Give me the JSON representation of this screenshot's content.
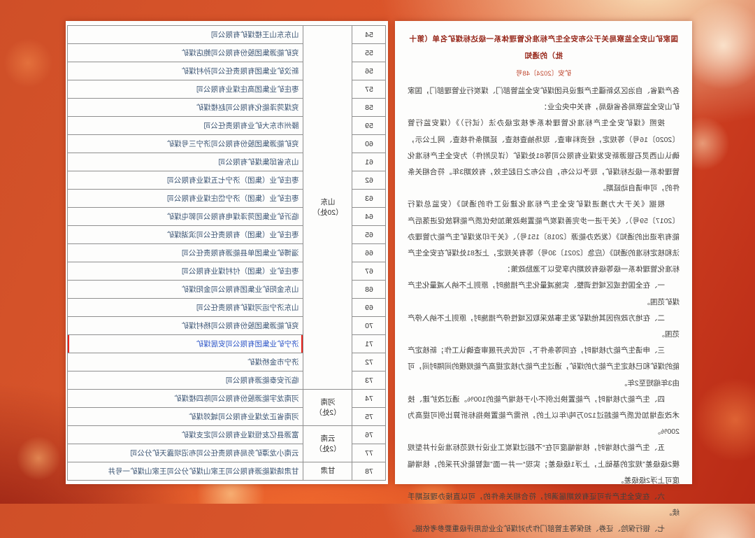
{
  "colors": {
    "accent_red": "#e8231c",
    "link_blue": "#2d55c8",
    "title_maroon": "#97281b",
    "doc_number_red": "#c04a32",
    "body_text": "#403f3d",
    "table_text": "#3c5574"
  },
  "notice": {
    "title": "国家矿山安全监察局关于公布安全生产标准化管理体系一级达标煤矿名单（第十批）的通知",
    "doc_number": "矿安〔2024〕48号",
    "paragraphs": [
      "各产煤省、自治区及新疆生产建设兵团煤矿安全监管部门、煤炭行业管理部门，国家矿山安全监察局各省级局，有关中央企业：",
      "按照《煤矿安全生产标准化管理体系考核定级办法（试行）》（煤安监行管〔2020〕16号）等规定，经资料审查、现场抽查核查、延期条件核查、网上公示，确认山西灵石银源新安发煤业有限公司等81处煤矿（详见附件）为安全生产标准化管理体系一级达标煤矿，现予以公布，自公布之日起生效，有效期3年。符合相关条件的，可申请自动延期。",
      "根据《关于大力推进煤矿安全生产标准化建设工作的通知》（安监总煤行〔2017〕59号）、《关于进一步完善煤炭产能置换政策加快优质产能释放促进落后产能有序退出的通知》（发改办能源〔2018〕151号）、《关于印发煤矿生产能力管理办法和核定标准的通知》（应急〔2021〕30号）等有关规定，上述81处煤矿在安全生产标准化管理体系一级等级有效期内享受以下激励政策：",
      "一、在全国性或区域性调整、实施减量化生产措施时，原则上不纳入减量化生产煤矿范围。",
      "二、在地方政府因其他煤矿发生事故采取区域性停产措施时，原则上不纳入停产范围。",
      "三、申请生产能力核增时，在同等条件下，可优先开展审查确认工作；新核定产能的煤矿和已核定生产能力的煤矿，通过生产能力核定提高产能规模的间隔时间，可由3年缩短至2年。",
      "四、生产能力核增时，产能置换比例不小于核增产能的100%。通过改扩建、技术改造增加优质产能超过120万吨/年以上的，所需产能置换指标折算比例可提高为200%。",
      "五、生产能力核增时，核增幅度可在“不超过煤炭工业设计规范标准设计井型规模2级级差”规定的基础上，上浮1级级差；实现“一井一面”或智能化开采的，核增幅度可上浮2级级差。",
      "六、在安全生产许可证有效期届满时，符合相关条件的，可以直接办理延期手续。",
      "七、银行保险、证券、担保等主管部门作为对煤矿企业信用评级重要参考依据。"
    ]
  },
  "table": {
    "highlight_no": "71",
    "regions": [
      {
        "label": "山东\n（20处）",
        "rows": [
          {
            "no": "54",
            "name": "山东东山王楼煤矿有限公司"
          },
          {
            "no": "55",
            "name": "兖矿能源集团股份有限公司鲍店煤矿"
          },
          {
            "no": "56",
            "name": "新汶矿业集团有限责任公司孙村煤矿"
          },
          {
            "no": "57",
            "name": "枣庄矿业集团高庄煤业有限公司"
          },
          {
            "no": "58",
            "name": "兖煤菏泽能化有限公司赵楼煤矿"
          },
          {
            "no": "59",
            "name": "滕州市东大矿业有限责任公司"
          },
          {
            "no": "60",
            "name": "兖矿能源集团股份有限公司济宁三号煤矿"
          },
          {
            "no": "61",
            "name": "山东省邱集煤矿有限公司"
          },
          {
            "no": "62",
            "name": "枣庄矿业（集团）济宁七五煤业有限公司"
          },
          {
            "no": "63",
            "name": "枣庄矿业（集团）济宁岱庄煤业有限公司"
          },
          {
            "no": "64",
            "name": "临沂矿业集团菏泽煤电有限公司郭屯煤矿"
          },
          {
            "no": "65",
            "name": "枣庄矿业（集团）有限责任公司滨湖煤矿"
          },
          {
            "no": "66",
            "name": "淄博矿业集团单县能源有限责任公司"
          },
          {
            "no": "67",
            "name": "枣庄矿业（集团）付村煤业有限公司"
          },
          {
            "no": "68",
            "name": "山东金阳矿业集团有限公司金阳煤矿"
          },
          {
            "no": "69",
            "name": "山东济宁运河煤矿有限责任公司"
          },
          {
            "no": "70",
            "name": "兖矿能源集团股份有限公司杨村煤矿"
          },
          {
            "no": "71",
            "name": "济宁矿业集团有限公司安居煤矿"
          },
          {
            "no": "72",
            "name": "济宁市金桥煤矿"
          },
          {
            "no": "73",
            "name": "临沂安泰能源有限公司"
          }
        ]
      },
      {
        "label": "河南\n（2处）",
        "rows": [
          {
            "no": "74",
            "name": "河南龙宇能源股份有限公司陈四楼煤矿"
          },
          {
            "no": "75",
            "name": "河南省正龙煤业有限公司城郊煤矿"
          }
        ]
      },
      {
        "label": "云南\n（2处）",
        "rows": [
          {
            "no": "76",
            "name": "富源县亿友恒煤业有限公司定支煤矿"
          },
          {
            "no": "77",
            "name": "云南小龙潭矿务局有限责任公司布沼坝露天矿分公司"
          }
        ]
      },
      {
        "label": "甘肃",
        "rows": [
          {
            "no": "78",
            "name": "甘肃靖煤能源有限公司王家山煤矿分公司王家山煤矿一号井"
          }
        ]
      }
    ]
  }
}
